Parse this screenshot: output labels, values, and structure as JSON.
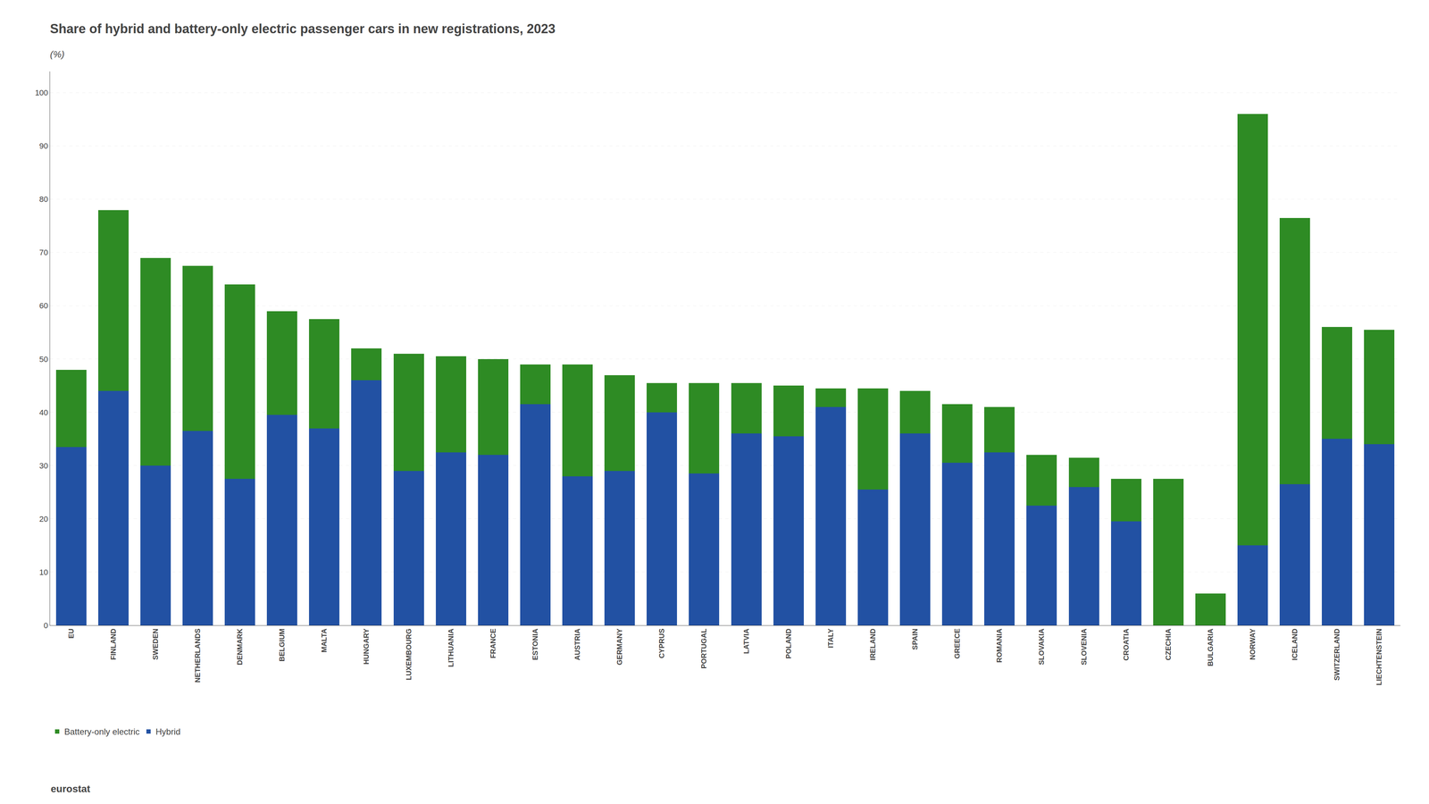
{
  "chart_data": {
    "type": "bar",
    "title": "Share of hybrid and battery-only electric passenger cars in new registrations, 2023",
    "subtitle": "(%)",
    "categories": [
      "EU",
      "FINLAND",
      "SWEDEN",
      "NETHERLANDS",
      "DENMARK",
      "BELGIUM",
      "MALTA",
      "HUNGARY",
      "LUXEMBOURG",
      "LITHUANIA",
      "FRANCE",
      "ESTONIA",
      "AUSTRIA",
      "GERMANY",
      "CYPRUS",
      "PORTUGAL",
      "LATVIA",
      "POLAND",
      "ITALY",
      "IRELAND",
      "SPAIN",
      "GREECE",
      "ROMANIA",
      "SLOVAKIA",
      "SLOVENIA",
      "CROATIA",
      "CZECHIA",
      "BULGARIA",
      "NORWAY",
      "ICELAND",
      "SWITZERLAND",
      "LIECHTENSTEIN"
    ],
    "series": [
      {
        "name": "Hybrid",
        "color": "#2251a3",
        "values": [
          33.5,
          44.0,
          30.0,
          36.5,
          27.5,
          39.5,
          37.0,
          46.0,
          29.0,
          32.5,
          32.0,
          41.5,
          28.0,
          29.0,
          40.0,
          28.5,
          36.0,
          35.5,
          41.0,
          25.5,
          36.0,
          30.5,
          32.5,
          22.5,
          26.0,
          19.5,
          0.0,
          0.0,
          15.0,
          26.5,
          35.0,
          34.0
        ]
      },
      {
        "name": "Battery-only electric",
        "color": "#2e8b24",
        "values": [
          14.5,
          34.0,
          39.0,
          31.0,
          36.5,
          19.5,
          20.5,
          6.0,
          22.0,
          18.0,
          18.0,
          7.5,
          21.0,
          18.0,
          5.5,
          17.0,
          9.5,
          9.5,
          3.5,
          19.0,
          8.0,
          11.0,
          8.5,
          9.5,
          5.5,
          8.0,
          27.5,
          6.0,
          81.0,
          50.0,
          21.0,
          21.5
        ]
      }
    ],
    "stacked": true,
    "ylim": [
      0,
      104
    ],
    "yticks": [
      0,
      10,
      20,
      30,
      40,
      50,
      60,
      70,
      80,
      90,
      100
    ],
    "grid": true,
    "legend": "lower left",
    "annotations": [
      "eurostat"
    ]
  }
}
